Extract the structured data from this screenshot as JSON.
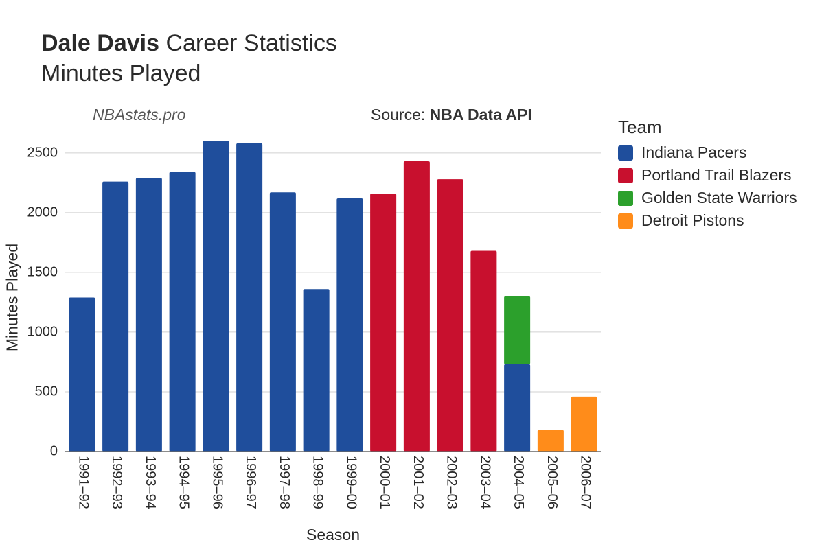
{
  "title_bold": "Dale Davis",
  "title_rest": " Career Statistics",
  "subtitle": "Minutes Played",
  "watermark": "NBAstats.pro",
  "source_prefix": "Source: ",
  "source_bold": "NBA Data API",
  "chart": {
    "type": "bar-stacked",
    "xlabel": "Season",
    "ylabel": "Minutes Played",
    "ylim": [
      0,
      2700
    ],
    "ytick_step": 500,
    "yticks": [
      0,
      500,
      1000,
      1500,
      2000,
      2500
    ],
    "background_color": "#ffffff",
    "grid_color": "#d0d0d0",
    "bar_width": 0.78,
    "label_fontsize": 23,
    "tick_fontsize": 20,
    "categories": [
      "1991–92",
      "1992–93",
      "1993–94",
      "1994–95",
      "1995–96",
      "1996–97",
      "1997–98",
      "1998–99",
      "1999–00",
      "2000–01",
      "2001–02",
      "2002–03",
      "2003–04",
      "2004–05",
      "2005–06",
      "2006–07"
    ],
    "teams": [
      "Indiana Pacers",
      "Portland Trail Blazers",
      "Golden State Warriors",
      "Detroit Pistons"
    ],
    "team_colors": {
      "Indiana Pacers": "#1f4e9c",
      "Portland Trail Blazers": "#c8102e",
      "Golden State Warriors": "#2ca02c",
      "Detroit Pistons": "#ff8c1a"
    },
    "series": [
      {
        "season": "1991–92",
        "segments": [
          {
            "team": "Indiana Pacers",
            "value": 1290
          }
        ]
      },
      {
        "season": "1992–93",
        "segments": [
          {
            "team": "Indiana Pacers",
            "value": 2260
          }
        ]
      },
      {
        "season": "1993–94",
        "segments": [
          {
            "team": "Indiana Pacers",
            "value": 2290
          }
        ]
      },
      {
        "season": "1994–95",
        "segments": [
          {
            "team": "Indiana Pacers",
            "value": 2340
          }
        ]
      },
      {
        "season": "1995–96",
        "segments": [
          {
            "team": "Indiana Pacers",
            "value": 2600
          }
        ]
      },
      {
        "season": "1996–97",
        "segments": [
          {
            "team": "Indiana Pacers",
            "value": 2580
          }
        ]
      },
      {
        "season": "1997–98",
        "segments": [
          {
            "team": "Indiana Pacers",
            "value": 2170
          }
        ]
      },
      {
        "season": "1998–99",
        "segments": [
          {
            "team": "Indiana Pacers",
            "value": 1360
          }
        ]
      },
      {
        "season": "1999–00",
        "segments": [
          {
            "team": "Indiana Pacers",
            "value": 2120
          }
        ]
      },
      {
        "season": "2000–01",
        "segments": [
          {
            "team": "Portland Trail Blazers",
            "value": 2160
          }
        ]
      },
      {
        "season": "2001–02",
        "segments": [
          {
            "team": "Portland Trail Blazers",
            "value": 2430
          }
        ]
      },
      {
        "season": "2002–03",
        "segments": [
          {
            "team": "Portland Trail Blazers",
            "value": 2280
          }
        ]
      },
      {
        "season": "2003–04",
        "segments": [
          {
            "team": "Portland Trail Blazers",
            "value": 1680
          }
        ]
      },
      {
        "season": "2004–05",
        "segments": [
          {
            "team": "Indiana Pacers",
            "value": 730
          },
          {
            "team": "Golden State Warriors",
            "value": 570
          }
        ]
      },
      {
        "season": "2005–06",
        "segments": [
          {
            "team": "Detroit Pistons",
            "value": 180
          }
        ]
      },
      {
        "season": "2006–07",
        "segments": [
          {
            "team": "Detroit Pistons",
            "value": 460
          }
        ]
      }
    ]
  },
  "legend_title": "Team"
}
